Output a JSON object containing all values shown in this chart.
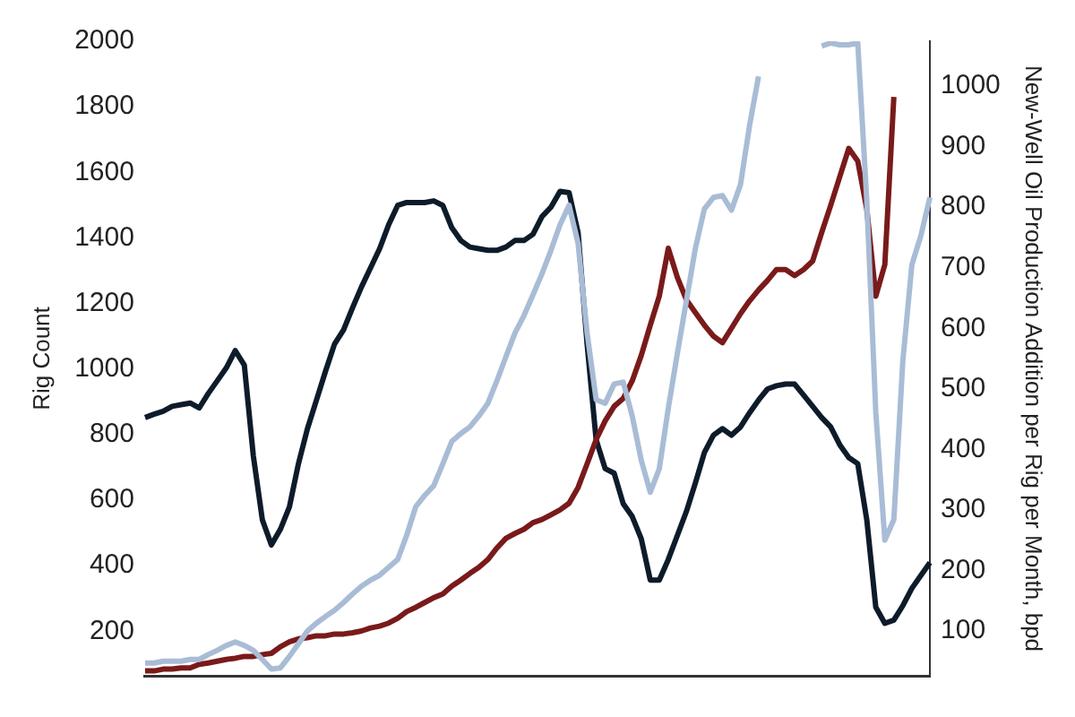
{
  "chart_data": {
    "type": "line",
    "ylabel": "Rig Count",
    "y2label": "New-Well Oil Production Addition per Rig per Month, bpd",
    "categories": [
      null,
      null,
      null,
      null,
      null,
      null,
      null,
      null,
      null,
      null,
      null,
      null,
      null,
      null,
      null,
      null,
      null,
      null,
      null,
      null,
      null,
      null,
      null,
      null,
      null,
      null,
      null,
      null,
      null,
      null,
      null,
      null,
      null,
      null,
      null,
      null,
      null,
      null,
      null,
      null,
      null,
      null,
      null,
      null,
      null,
      null,
      null,
      null,
      null,
      null,
      null,
      null,
      null,
      null,
      null,
      null,
      null,
      null,
      null,
      null,
      null,
      null,
      null,
      null,
      null,
      null,
      null,
      null,
      null,
      null,
      null,
      null,
      null,
      null,
      null,
      null,
      null,
      null,
      null,
      null,
      null,
      null,
      null,
      null,
      null,
      null,
      null,
      null
    ],
    "series": [
      {
        "color": "#a9bcd6",
        "axis": "y2",
        "values": [
          47,
          47,
          50,
          50,
          50,
          53,
          53,
          61,
          68,
          76,
          82,
          76,
          68,
          53,
          37,
          39,
          58,
          79,
          100,
          113,
          124,
          134,
          147,
          161,
          174,
          184,
          192,
          205,
          218,
          258,
          305,
          324,
          340,
          376,
          413,
          426,
          437,
          455,
          476,
          513,
          553,
          592,
          621,
          655,
          690,
          729,
          771,
          803,
          740,
          592,
          482,
          476,
          508,
          511,
          455,
          382,
          329,
          368,
          468,
          558,
          645,
          732,
          797,
          816,
          819,
          795,
          837,
          934,
          1016,
          null,
          null,
          null,
          null,
          null,
          null,
          1066,
          1071,
          1068,
          1068,
          1071,
          811,
          461,
          250,
          284,
          547,
          705,
          753,
          816
        ]
      },
      {
        "color": "#7a1a1a",
        "axis": "y2",
        "values": [
          34,
          34,
          37,
          37,
          39,
          39,
          45,
          47,
          50,
          53,
          55,
          58,
          58,
          61,
          63,
          74,
          82,
          87,
          89,
          92,
          92,
          95,
          95,
          97,
          100,
          105,
          108,
          113,
          121,
          132,
          139,
          147,
          155,
          161,
          174,
          184,
          195,
          205,
          218,
          237,
          253,
          261,
          268,
          279,
          284,
          292,
          300,
          311,
          337,
          376,
          416,
          447,
          471,
          484,
          513,
          555,
          605,
          653,
          732,
          684,
          647,
          626,
          605,
          587,
          576,
          600,
          624,
          645,
          663,
          679,
          697,
          697,
          687,
          697,
          711,
          758,
          803,
          850,
          897,
          876,
          797,
          653,
          705,
          982,
          null,
          null,
          null,
          null
        ]
      },
      {
        "color": "#0d1b2a",
        "axis": "y",
        "values": [
          852,
          862,
          871,
          886,
          891,
          896,
          881,
          925,
          964,
          1003,
          1056,
          1012,
          735,
          540,
          463,
          511,
          579,
          711,
          818,
          905,
          993,
          1076,
          1119,
          1187,
          1251,
          1309,
          1367,
          1440,
          1499,
          1508,
          1508,
          1508,
          1513,
          1499,
          1431,
          1392,
          1372,
          1367,
          1362,
          1362,
          1372,
          1392,
          1392,
          1411,
          1465,
          1494,
          1542,
          1538,
          1416,
          1076,
          784,
          696,
          682,
          589,
          550,
          482,
          356,
          356,
          419,
          492,
          565,
          652,
          745,
          798,
          818,
          798,
          823,
          866,
          905,
          939,
          949,
          954,
          954,
          920,
          886,
          852,
          823,
          769,
          730,
          711,
          540,
          273,
          224,
          234,
          278,
          331,
          370,
          409
        ]
      }
    ],
    "ylim": [
      64,
      2000
    ],
    "yticks": [
      200,
      400,
      600,
      800,
      1000,
      1200,
      1400,
      1600,
      1800,
      2000
    ],
    "y2lim": [
      26,
      1074
    ],
    "y2ticks": [
      100,
      200,
      300,
      400,
      500,
      600,
      700,
      800,
      900,
      1000
    ],
    "tick_labels": "y",
    "grid": false,
    "legend": false,
    "marker": "none",
    "line_style": "solid"
  }
}
